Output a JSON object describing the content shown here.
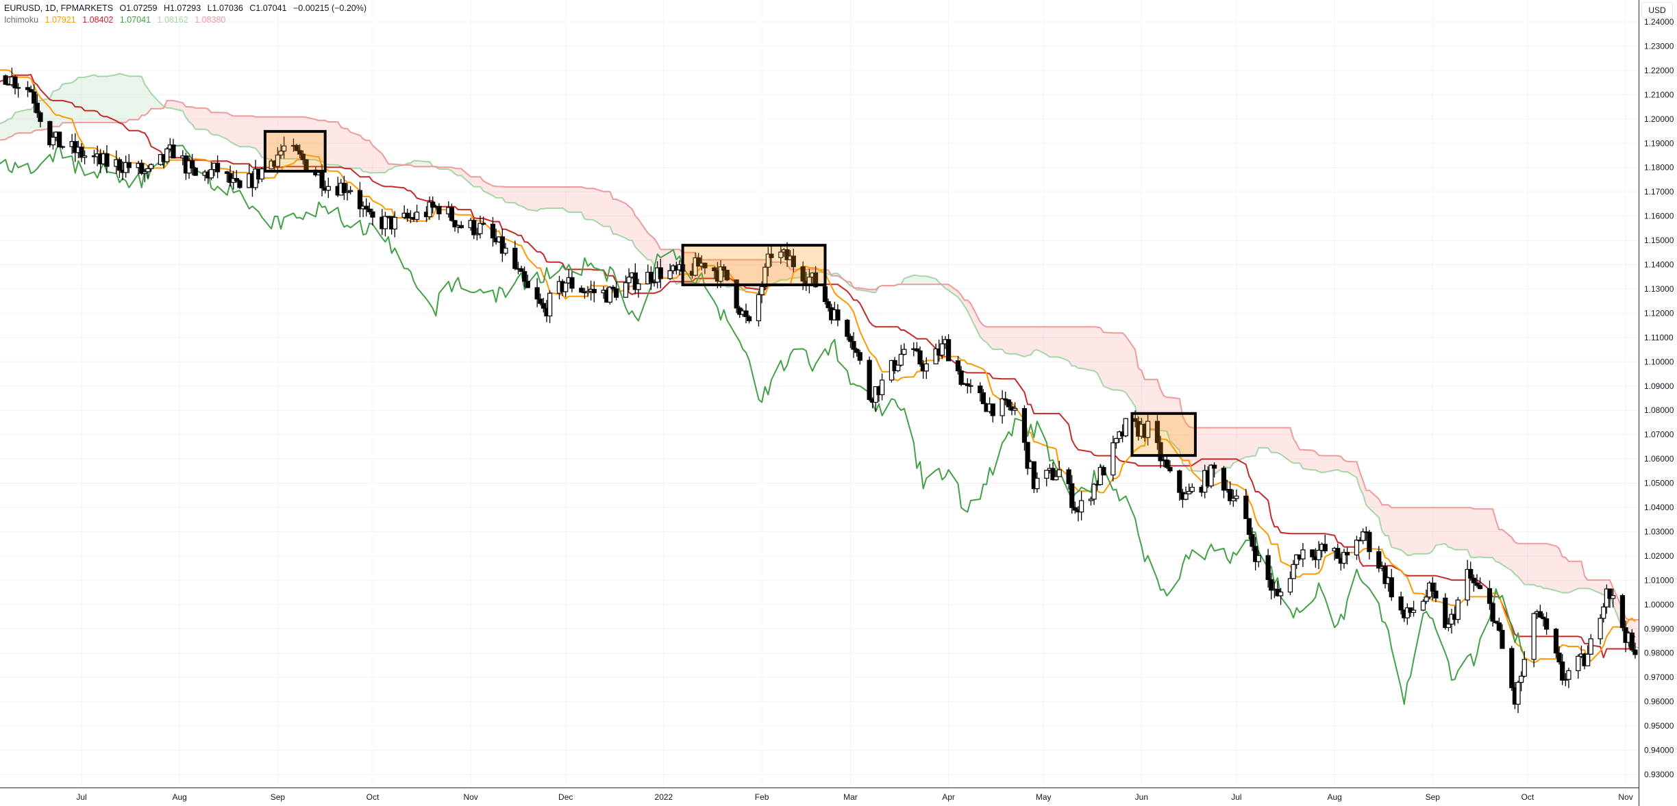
{
  "legend": {
    "symbol": "EURUSD, 1D, FPMARKETS",
    "open": "O1.07259",
    "high": "H1.07293",
    "low": "L1.07036",
    "close": "C1.07041",
    "change": "−0.00215 (−0.20%)",
    "indicator_name": "Ichimoku",
    "indicator_values": [
      {
        "value": "1.07921",
        "color": "#FF9800"
      },
      {
        "value": "1.08402",
        "color": "#C62828"
      },
      {
        "value": "1.07041",
        "color": "#43A047"
      },
      {
        "value": "1.08162",
        "color": "#A5D6A7"
      },
      {
        "value": "1.08380",
        "color": "#EF9A9A"
      }
    ]
  },
  "currency_label": "USD",
  "chart_data": {
    "type": "candlestick",
    "symbol": "EURUSD",
    "interval": "1D",
    "ylim": [
      0.93,
      1.245
    ],
    "grid": true,
    "y_ticks": [
      "1.24000",
      "1.23000",
      "1.22000",
      "1.21000",
      "1.20000",
      "1.19000",
      "1.18000",
      "1.17000",
      "1.16000",
      "1.15000",
      "1.14000",
      "1.13000",
      "1.12000",
      "1.11000",
      "1.10000",
      "1.09000",
      "1.08000",
      "1.07000",
      "1.06000",
      "1.05000",
      "1.04000",
      "1.03000",
      "1.02000",
      "1.01000",
      "1.00000",
      "0.99000",
      "0.98000",
      "0.97000",
      "0.96000",
      "0.95000",
      "0.94000",
      "0.93000"
    ],
    "x_ticks": [
      {
        "label": "Jul",
        "date": "2021-07-01"
      },
      {
        "label": "Aug",
        "date": "2021-08-01"
      },
      {
        "label": "Sep",
        "date": "2021-09-01"
      },
      {
        "label": "Oct",
        "date": "2021-10-01"
      },
      {
        "label": "Nov",
        "date": "2021-11-01"
      },
      {
        "label": "Dec",
        "date": "2021-12-01"
      },
      {
        "label": "2022",
        "date": "2022-01-01"
      },
      {
        "label": "Feb",
        "date": "2022-02-01"
      },
      {
        "label": "Mar",
        "date": "2022-03-01"
      },
      {
        "label": "Apr",
        "date": "2022-04-01"
      },
      {
        "label": "May",
        "date": "2022-05-01"
      },
      {
        "label": "Jun",
        "date": "2022-06-01"
      },
      {
        "label": "Jul",
        "date": "2022-07-01"
      },
      {
        "label": "Aug",
        "date": "2022-08-01"
      },
      {
        "label": "Sep",
        "date": "2022-09-01"
      },
      {
        "label": "Oct",
        "date": "2022-10-01"
      },
      {
        "label": "Nov",
        "date": "2022-11-01"
      }
    ],
    "close_path": [
      [
        "2021-06-07",
        1.218
      ],
      [
        "2021-06-15",
        1.212
      ],
      [
        "2021-06-21",
        1.192
      ],
      [
        "2021-06-30",
        1.186
      ],
      [
        "2021-07-07",
        1.182
      ],
      [
        "2021-07-15",
        1.181
      ],
      [
        "2021-07-22",
        1.177
      ],
      [
        "2021-07-30",
        1.187
      ],
      [
        "2021-08-06",
        1.176
      ],
      [
        "2021-08-13",
        1.179
      ],
      [
        "2021-08-20",
        1.17
      ],
      [
        "2021-08-27",
        1.179
      ],
      [
        "2021-09-03",
        1.188
      ],
      [
        "2021-09-10",
        1.182
      ],
      [
        "2021-09-17",
        1.173
      ],
      [
        "2021-09-24",
        1.172
      ],
      [
        "2021-09-30",
        1.158
      ],
      [
        "2021-10-08",
        1.157
      ],
      [
        "2021-10-15",
        1.16
      ],
      [
        "2021-10-22",
        1.164
      ],
      [
        "2021-10-29",
        1.156
      ],
      [
        "2021-11-04",
        1.155
      ],
      [
        "2021-11-12",
        1.145
      ],
      [
        "2021-11-19",
        1.129
      ],
      [
        "2021-11-24",
        1.121
      ],
      [
        "2021-12-01",
        1.133
      ],
      [
        "2021-12-08",
        1.129
      ],
      [
        "2021-12-15",
        1.128
      ],
      [
        "2021-12-22",
        1.133
      ],
      [
        "2021-12-31",
        1.137
      ],
      [
        "2022-01-07",
        1.136
      ],
      [
        "2022-01-14",
        1.141
      ],
      [
        "2022-01-21",
        1.134
      ],
      [
        "2022-01-28",
        1.114
      ],
      [
        "2022-02-04",
        1.145
      ],
      [
        "2022-02-10",
        1.142
      ],
      [
        "2022-02-18",
        1.132
      ],
      [
        "2022-02-24",
        1.119
      ],
      [
        "2022-03-01",
        1.112
      ],
      [
        "2022-03-07",
        1.086
      ],
      [
        "2022-03-11",
        1.091
      ],
      [
        "2022-03-18",
        1.105
      ],
      [
        "2022-03-25",
        1.098
      ],
      [
        "2022-03-31",
        1.107
      ],
      [
        "2022-04-07",
        1.088
      ],
      [
        "2022-04-14",
        1.082
      ],
      [
        "2022-04-22",
        1.08
      ],
      [
        "2022-04-28",
        1.05
      ],
      [
        "2022-05-06",
        1.055
      ],
      [
        "2022-05-12",
        1.038
      ],
      [
        "2022-05-20",
        1.056
      ],
      [
        "2022-05-27",
        1.073
      ],
      [
        "2022-06-03",
        1.072
      ],
      [
        "2022-06-10",
        1.052
      ],
      [
        "2022-06-15",
        1.044
      ],
      [
        "2022-06-24",
        1.055
      ],
      [
        "2022-07-01",
        1.043
      ],
      [
        "2022-07-08",
        1.018
      ],
      [
        "2022-07-14",
        1.002
      ],
      [
        "2022-07-21",
        1.022
      ],
      [
        "2022-07-29",
        1.022
      ],
      [
        "2022-08-05",
        1.018
      ],
      [
        "2022-08-10",
        1.03
      ],
      [
        "2022-08-18",
        1.009
      ],
      [
        "2022-08-23",
        0.994
      ],
      [
        "2022-08-31",
        1.005
      ],
      [
        "2022-09-06",
        0.99
      ],
      [
        "2022-09-12",
        1.012
      ],
      [
        "2022-09-20",
        0.997
      ],
      [
        "2022-09-27",
        0.96
      ],
      [
        "2022-10-04",
        0.998
      ],
      [
        "2022-10-12",
        0.97
      ],
      [
        "2022-10-20",
        0.978
      ],
      [
        "2022-10-26",
        1.008
      ],
      [
        "2022-11-01",
        0.988
      ],
      [
        "2022-11-04",
        0.977
      ]
    ],
    "ichimoku": {
      "conversion_color": "#FF9800",
      "base_color": "#C62828",
      "lagging_color": "#43A047",
      "span_a_color": "#A5D6A7",
      "span_b_color": "#EF9A9A",
      "bull_cloud_color": "#4CAF50",
      "bear_cloud_color": "#F44336",
      "periods": [
        9,
        26,
        52,
        26
      ]
    },
    "candle_colors": {
      "up_body": "#FFFFFF",
      "down_body": "#000000",
      "outline": "#000000"
    },
    "highlight_boxes": [
      {
        "from": "2021-08-28",
        "to": "2021-09-16",
        "top": 1.1949,
        "bottom": 1.1785
      },
      {
        "from": "2022-01-07",
        "to": "2022-02-21",
        "top": 1.148,
        "bottom": 1.1317
      },
      {
        "from": "2022-05-29",
        "to": "2022-06-18",
        "top": 1.0787,
        "bottom": 1.0614
      }
    ],
    "highlight_fill": "#FF9800",
    "highlight_border": "#000000"
  }
}
